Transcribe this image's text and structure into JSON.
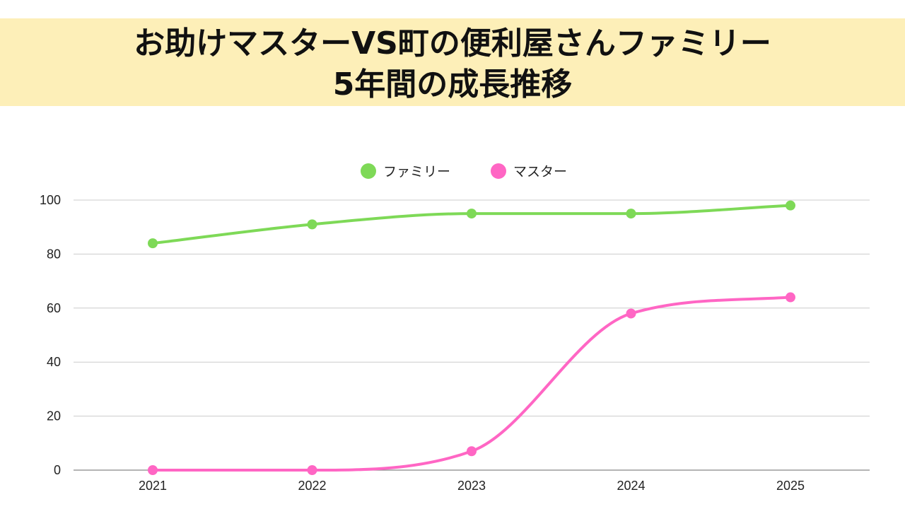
{
  "title": {
    "line1": "お助けマスターVS町の便利屋さんファミリー",
    "line2": "5年間の成長推移"
  },
  "colors": {
    "banner_background": "#fdefb8",
    "familia_series": "#7ed957",
    "master_series": "#ff66c4",
    "grid": "#cccccc",
    "axis": "#888888"
  },
  "chart_data": {
    "type": "line",
    "title": "お助けマスターVS町の便利屋さんファミリー 5年間の成長推移",
    "xlabel": "",
    "ylabel": "",
    "categories": [
      "2021",
      "2022",
      "2023",
      "2024",
      "2025"
    ],
    "series": [
      {
        "name": "ファミリー",
        "values": [
          84,
          91,
          95,
          95,
          98
        ],
        "color": "#7ed957"
      },
      {
        "name": "マスター",
        "values": [
          0,
          0,
          7,
          58,
          64
        ],
        "color": "#ff66c4"
      }
    ],
    "ylim": [
      0,
      100
    ],
    "yticks": [
      0,
      20,
      40,
      60,
      80,
      100
    ],
    "grid": true,
    "smooth": true,
    "legend_position": "top-center",
    "markers": true
  }
}
